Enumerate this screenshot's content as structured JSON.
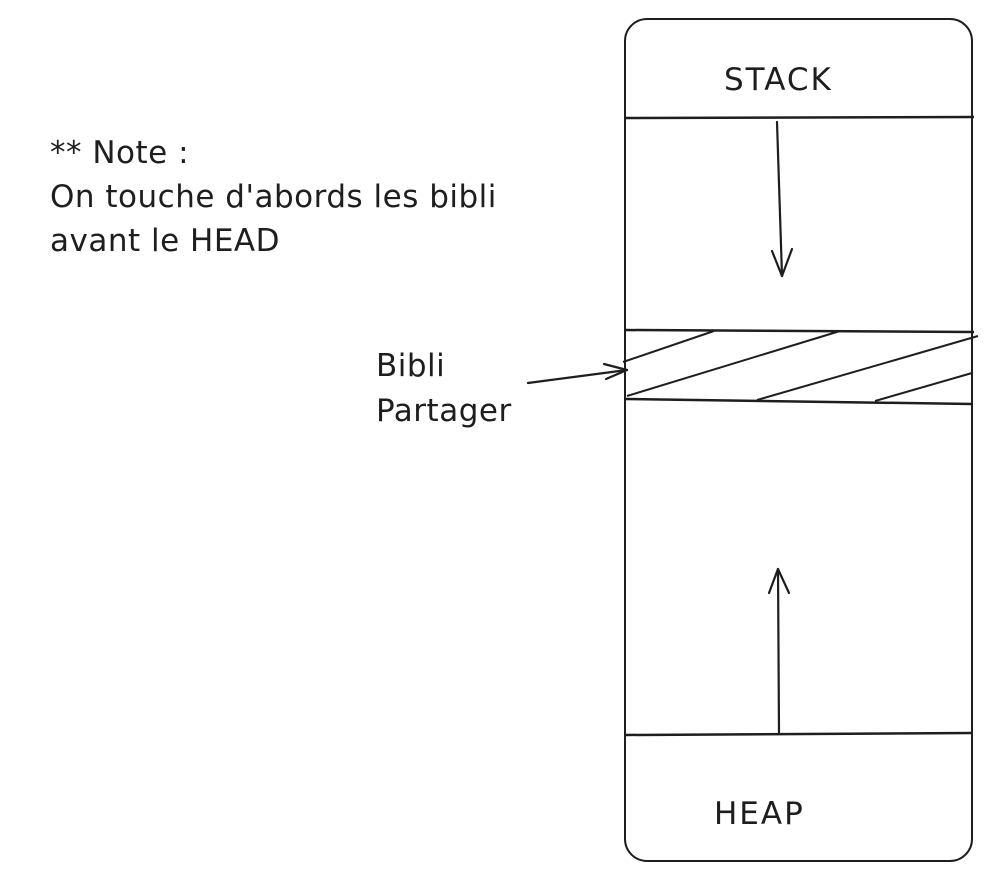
{
  "note": {
    "lines": [
      "** Note :",
      "On touche d'abords les bibli",
      "avant le HEAD"
    ]
  },
  "memory": {
    "top_label": "STACK",
    "bottom_label": "HEAP"
  },
  "shared_lib": {
    "lines": [
      "Bibli",
      "Partager"
    ]
  },
  "colors": {
    "stroke": "#1e1e1e",
    "background": "#ffffff"
  }
}
